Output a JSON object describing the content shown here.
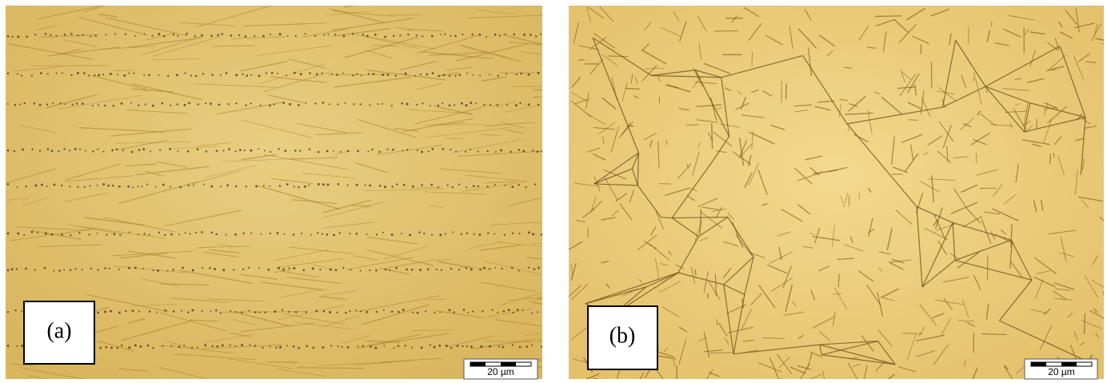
{
  "panels": [
    {
      "label": "(a)",
      "scale": "20 µm"
    },
    {
      "label": "(b)",
      "scale": "20 µm"
    }
  ]
}
